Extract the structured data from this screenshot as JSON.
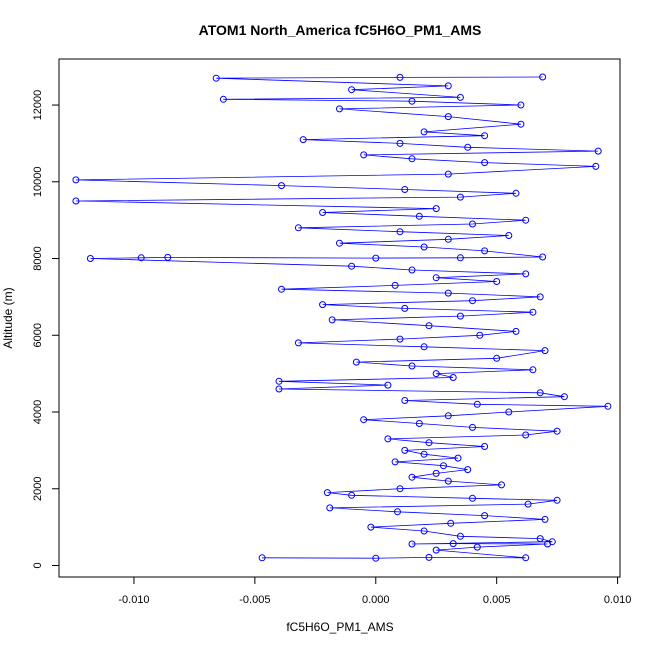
{
  "chart_data": {
    "type": "scatter",
    "title": "ATOM1 North_America fC5H6O_PM1_AMS",
    "xlabel": "fC5H6O_PM1_AMS",
    "ylabel": "Altitude (m)",
    "xlim": [
      -0.0131,
      0.0101
    ],
    "ylim": [
      -300,
      13200
    ],
    "xticks": [
      -0.01,
      -0.005,
      0.0,
      0.005,
      0.01
    ],
    "xtick_labels": [
      "-0.010",
      "-0.005",
      "0.000",
      "0.005",
      "0.010"
    ],
    "yticks": [
      0,
      2000,
      4000,
      6000,
      8000,
      10000,
      12000
    ],
    "ytick_labels": [
      "0",
      "2000",
      "4000",
      "6000",
      "8000",
      "10000",
      "12000"
    ],
    "grid": false,
    "legend": "none",
    "point_style": "open-circle",
    "connected_by_line": true,
    "series_color": "#0000ff",
    "series": [
      {
        "points": [
          [
            -0.0047,
            200
          ],
          [
            0.0,
            190
          ],
          [
            0.0022,
            210
          ],
          [
            0.0062,
            200
          ],
          [
            0.0025,
            400
          ],
          [
            0.0042,
            480
          ],
          [
            0.0071,
            560
          ],
          [
            0.0032,
            570
          ],
          [
            0.0015,
            560
          ],
          [
            0.0073,
            620
          ],
          [
            0.0068,
            700
          ],
          [
            0.0035,
            760
          ],
          [
            0.002,
            900
          ],
          [
            -0.0002,
            1000
          ],
          [
            0.0031,
            1100
          ],
          [
            0.007,
            1200
          ],
          [
            0.0045,
            1300
          ],
          [
            0.0009,
            1400
          ],
          [
            -0.0019,
            1500
          ],
          [
            0.0063,
            1600
          ],
          [
            0.0075,
            1700
          ],
          [
            0.004,
            1750
          ],
          [
            -0.001,
            1830
          ],
          [
            -0.002,
            1900
          ],
          [
            0.001,
            2000
          ],
          [
            0.0052,
            2100
          ],
          [
            0.003,
            2200
          ],
          [
            0.0015,
            2300
          ],
          [
            0.0025,
            2400
          ],
          [
            0.0038,
            2500
          ],
          [
            0.0028,
            2600
          ],
          [
            0.0008,
            2700
          ],
          [
            0.0034,
            2800
          ],
          [
            0.002,
            2900
          ],
          [
            0.0012,
            3000
          ],
          [
            0.0045,
            3100
          ],
          [
            0.0022,
            3200
          ],
          [
            0.0005,
            3300
          ],
          [
            0.0062,
            3400
          ],
          [
            0.0075,
            3500
          ],
          [
            0.004,
            3600
          ],
          [
            0.0018,
            3700
          ],
          [
            -0.0005,
            3800
          ],
          [
            0.003,
            3900
          ],
          [
            0.0055,
            4000
          ],
          [
            0.0096,
            4150
          ],
          [
            0.0042,
            4200
          ],
          [
            0.0012,
            4300
          ],
          [
            0.0078,
            4400
          ],
          [
            0.0068,
            4500
          ],
          [
            -0.004,
            4600
          ],
          [
            0.0005,
            4700
          ],
          [
            -0.004,
            4800
          ],
          [
            0.0032,
            4900
          ],
          [
            0.0025,
            5000
          ],
          [
            0.0065,
            5100
          ],
          [
            0.0015,
            5200
          ],
          [
            -0.0008,
            5300
          ],
          [
            0.005,
            5400
          ],
          [
            0.007,
            5600
          ],
          [
            0.002,
            5700
          ],
          [
            -0.0032,
            5800
          ],
          [
            0.001,
            5900
          ],
          [
            0.0043,
            6000
          ],
          [
            0.0058,
            6100
          ],
          [
            0.0022,
            6250
          ],
          [
            -0.0018,
            6400
          ],
          [
            0.0035,
            6500
          ],
          [
            0.0065,
            6600
          ],
          [
            0.0012,
            6700
          ],
          [
            -0.0022,
            6800
          ],
          [
            0.004,
            6900
          ],
          [
            0.0068,
            7000
          ],
          [
            0.003,
            7100
          ],
          [
            -0.0039,
            7200
          ],
          [
            0.0008,
            7300
          ],
          [
            0.005,
            7400
          ],
          [
            0.0025,
            7500
          ],
          [
            0.0062,
            7600
          ],
          [
            0.0015,
            7700
          ],
          [
            -0.001,
            7800
          ],
          [
            -0.0118,
            8000
          ],
          [
            -0.0097,
            8020
          ],
          [
            -0.0086,
            8030
          ],
          [
            0.0,
            8010
          ],
          [
            0.0035,
            8020
          ],
          [
            0.0069,
            8040
          ],
          [
            0.0045,
            8200
          ],
          [
            0.002,
            8300
          ],
          [
            -0.0015,
            8400
          ],
          [
            0.003,
            8500
          ],
          [
            0.0055,
            8600
          ],
          [
            0.001,
            8700
          ],
          [
            -0.0032,
            8800
          ],
          [
            0.004,
            8900
          ],
          [
            0.0062,
            9000
          ],
          [
            0.0018,
            9100
          ],
          [
            -0.0022,
            9200
          ],
          [
            0.0025,
            9300
          ],
          [
            -0.0124,
            9500
          ],
          [
            0.0035,
            9600
          ],
          [
            0.0058,
            9700
          ],
          [
            0.0012,
            9800
          ],
          [
            -0.0039,
            9900
          ],
          [
            -0.0124,
            10050
          ],
          [
            0.003,
            10200
          ],
          [
            0.0091,
            10400
          ],
          [
            0.0045,
            10500
          ],
          [
            0.0015,
            10600
          ],
          [
            -0.0005,
            10700
          ],
          [
            0.0092,
            10800
          ],
          [
            0.0038,
            10900
          ],
          [
            0.001,
            11000
          ],
          [
            -0.003,
            11100
          ],
          [
            0.0045,
            11200
          ],
          [
            0.002,
            11300
          ],
          [
            0.006,
            11500
          ],
          [
            0.003,
            11700
          ],
          [
            -0.0015,
            11900
          ],
          [
            0.006,
            12000
          ],
          [
            0.0015,
            12100
          ],
          [
            -0.0063,
            12150
          ],
          [
            0.0035,
            12200
          ],
          [
            -0.001,
            12400
          ],
          [
            0.003,
            12500
          ],
          [
            -0.0066,
            12700
          ],
          [
            0.001,
            12720
          ],
          [
            0.0069,
            12730
          ]
        ]
      }
    ]
  }
}
